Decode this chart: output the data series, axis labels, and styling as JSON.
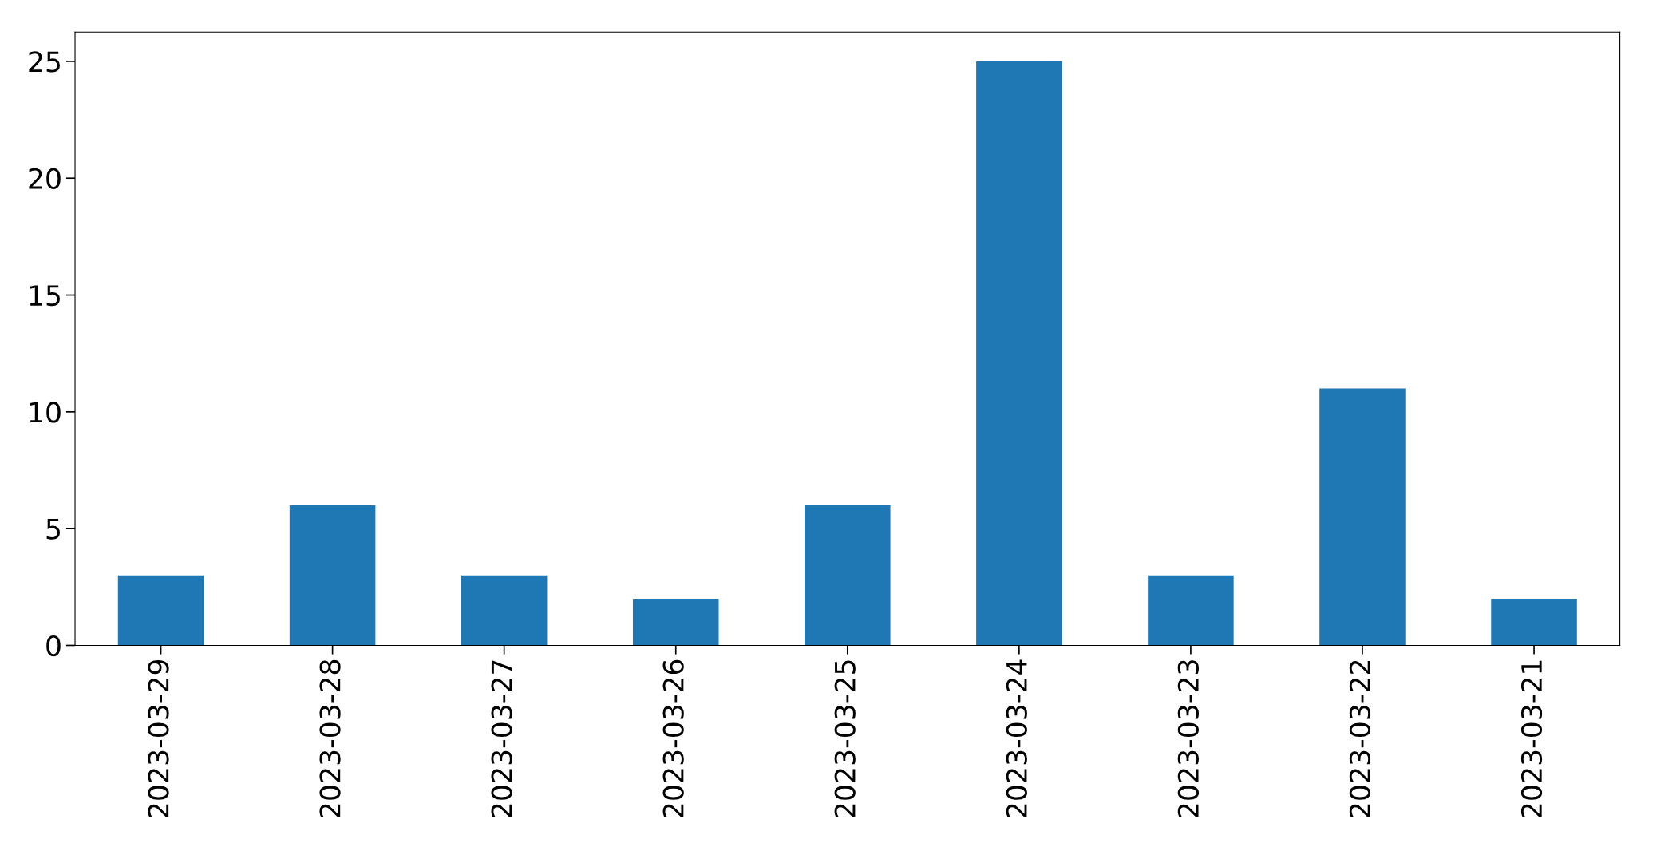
{
  "chart_data": {
    "type": "bar",
    "categories": [
      "2023-03-29",
      "2023-03-28",
      "2023-03-27",
      "2023-03-26",
      "2023-03-25",
      "2023-03-24",
      "2023-03-23",
      "2023-03-22",
      "2023-03-21"
    ],
    "values": [
      3,
      6,
      3,
      2,
      6,
      25,
      3,
      11,
      2
    ],
    "color": "#1f77b4",
    "ylim": [
      0,
      26.25
    ],
    "yticks": [
      0,
      5,
      10,
      15,
      20,
      25
    ],
    "grid": false
  }
}
